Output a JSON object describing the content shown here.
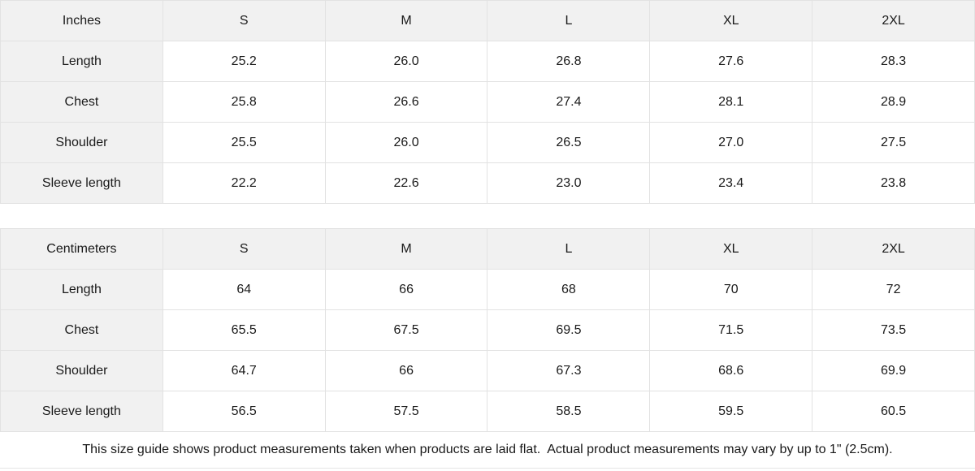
{
  "chart_data": [
    {
      "type": "table",
      "title": "Inches",
      "columns": [
        "Inches",
        "S",
        "M",
        "L",
        "XL",
        "2XL"
      ],
      "rows": [
        [
          "Length",
          "25.2",
          "26.0",
          "26.8",
          "27.6",
          "28.3"
        ],
        [
          "Chest",
          "25.8",
          "26.6",
          "27.4",
          "28.1",
          "28.9"
        ],
        [
          "Shoulder",
          "25.5",
          "26.0",
          "26.5",
          "27.0",
          "27.5"
        ],
        [
          "Sleeve length",
          "22.2",
          "22.6",
          "23.0",
          "23.4",
          "23.8"
        ]
      ]
    },
    {
      "type": "table",
      "title": "Centimeters",
      "columns": [
        "Centimeters",
        "S",
        "M",
        "L",
        "XL",
        "2XL"
      ],
      "rows": [
        [
          "Length",
          "64",
          "66",
          "68",
          "70",
          "72"
        ],
        [
          "Chest",
          "65.5",
          "67.5",
          "69.5",
          "71.5",
          "73.5"
        ],
        [
          "Shoulder",
          "64.7",
          "66",
          "67.3",
          "68.6",
          "69.9"
        ],
        [
          "Sleeve length",
          "56.5",
          "57.5",
          "58.5",
          "59.5",
          "60.5"
        ]
      ]
    }
  ],
  "footer": {
    "note": "This size guide shows product measurements taken when products are laid flat.  Actual product measurements may vary by up to 1\" (2.5cm)."
  },
  "colors": {
    "header_bg": "#f1f1f1",
    "cell_bg": "#ffffff",
    "border": "#e2e2e2",
    "text": "#1a1a1a"
  }
}
